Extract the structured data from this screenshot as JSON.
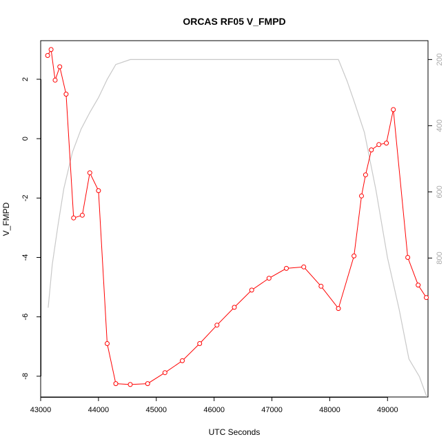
{
  "chart_data": {
    "type": "line",
    "title": "ORCAS RF05 V_FMPD",
    "xlabel": "UTC Seconds",
    "ylabel": "V_FMPD",
    "xlim": [
      43000,
      49700
    ],
    "ylim": [
      -8.7,
      3.3
    ],
    "x_ticks": [
      43000,
      44000,
      45000,
      46000,
      47000,
      48000,
      49000
    ],
    "y_ticks": [
      -8,
      -6,
      -4,
      -2,
      0,
      2
    ],
    "series": [
      {
        "color": "#ff0000",
        "marker": "open-circle",
        "x": [
          43120,
          43180,
          43250,
          43330,
          43440,
          43570,
          43720,
          43850,
          44000,
          44150,
          44300,
          44550,
          44850,
          45150,
          45450,
          45750,
          46050,
          46350,
          46650,
          46950,
          47250,
          47550,
          47850,
          48150,
          48420,
          48550,
          48620,
          48720,
          48850,
          48980,
          49100,
          49350,
          49530,
          49670
        ],
        "y": [
          2.8,
          3.0,
          1.97,
          2.42,
          1.5,
          -2.67,
          -2.58,
          -1.15,
          -1.75,
          -6.9,
          -8.25,
          -8.28,
          -8.25,
          -7.88,
          -7.48,
          -6.9,
          -6.28,
          -5.68,
          -5.1,
          -4.7,
          -4.37,
          -4.32,
          -4.97,
          -5.72,
          -3.95,
          -1.93,
          -1.22,
          -0.38,
          -0.2,
          -0.15,
          0.98,
          -4.0,
          -4.93,
          -5.35
        ]
      },
      {
        "color": "#c8c8c8",
        "axis": "right",
        "x": [
          43130,
          43200,
          43300,
          43400,
          43550,
          43700,
          43850,
          44000,
          44150,
          44300,
          44550,
          44850,
          45200,
          46000,
          47000,
          47800,
          48150,
          48300,
          48420,
          48600,
          48800,
          49000,
          49200,
          49370,
          49550,
          49680
        ],
        "y": [
          950,
          820,
          700,
          590,
          480,
          410,
          360,
          315,
          260,
          215,
          200,
          200,
          200,
          200,
          200,
          200,
          200,
          265,
          325,
          420,
          595,
          800,
          955,
          1105,
          1158,
          1220
        ]
      }
    ],
    "y2lim": [
      143,
      1220
    ],
    "y2_ticks": [
      200,
      400,
      600,
      800
    ],
    "y2_reversed": true,
    "grid": false
  }
}
